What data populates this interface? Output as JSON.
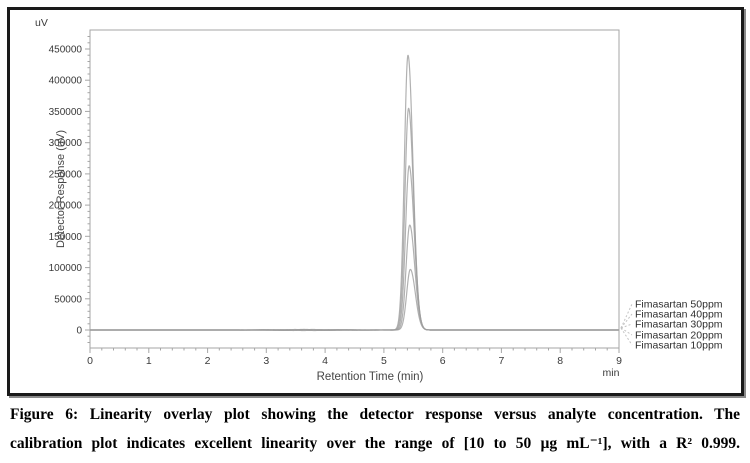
{
  "figure": {
    "caption_line1": "Figure 6: Linearity overlay plot showing the detector response versus analyte concentration. The",
    "caption_line2": "calibration plot indicates excellent linearity over the range of [10 to 50 µg mL⁻¹], with a  R² 0.999."
  },
  "chart_data": {
    "type": "line",
    "title": "",
    "xlabel": "Retention Time (min)",
    "ylabel": "Detector Response (uV)",
    "x_axis_unit_label": "min",
    "y_axis_unit_label": "uV",
    "xlim": [
      0,
      9
    ],
    "ylim": [
      -30000,
      480000
    ],
    "x_ticks": [
      0,
      1,
      2,
      3,
      4,
      5,
      6,
      7,
      8,
      9
    ],
    "y_ticks": [
      0,
      50000,
      100000,
      150000,
      200000,
      250000,
      300000,
      350000,
      400000,
      450000
    ],
    "x_minor_step": 0.2,
    "y_minor_step": 10000,
    "grid": false,
    "legend_position": "right-outside",
    "retention_time_min": 5.4,
    "peak_sigma_left_min": 0.062,
    "peak_sigma_right_min": 0.085,
    "baseline_noise_uV": 800,
    "series": [
      {
        "name": "Fimasartan 50ppm",
        "concentration_ppm": 50,
        "peak_center_min": 5.41,
        "peak_height_uV": 440000
      },
      {
        "name": "Fimasartan 40ppm",
        "concentration_ppm": 40,
        "peak_center_min": 5.42,
        "peak_height_uV": 355000
      },
      {
        "name": "Fimasartan 30ppm",
        "concentration_ppm": 30,
        "peak_center_min": 5.43,
        "peak_height_uV": 263000
      },
      {
        "name": "Fimasartan 20ppm",
        "concentration_ppm": 20,
        "peak_center_min": 5.44,
        "peak_height_uV": 168000
      },
      {
        "name": "Fimasartan 10ppm",
        "concentration_ppm": 10,
        "peak_center_min": 5.45,
        "peak_height_uV": 97000
      }
    ],
    "colors": {
      "trace": "#9e9e9e",
      "axis": "#a6a6a6",
      "tick_text": "#3a3a3a",
      "axis_title_text": "#444444",
      "leader": "#c2c2c2",
      "legend_text": "#2e2e2e",
      "frame_border": "#1a1a1a"
    }
  }
}
